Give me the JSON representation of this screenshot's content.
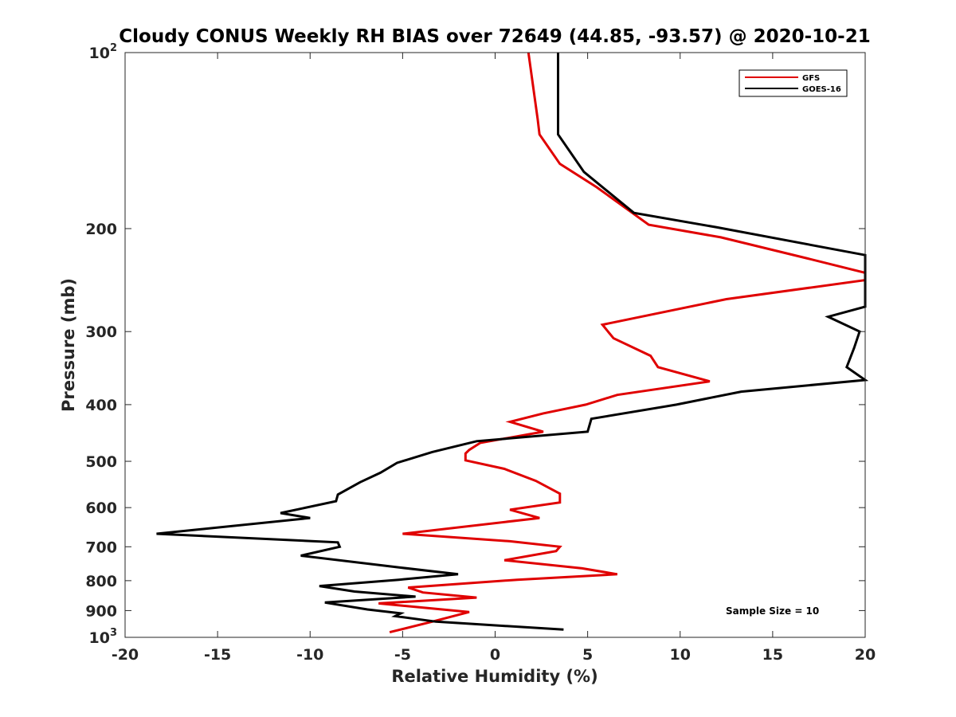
{
  "chart_data": {
    "type": "line",
    "title": "Cloudy CONUS Weekly RH BIAS over 72649 (44.85, -93.57) @ 2020-10-21",
    "xlabel": "Relative Humidity (%)",
    "ylabel": "Pressure (mb)",
    "xlim": [
      -20,
      20
    ],
    "ylim": [
      100,
      1000
    ],
    "y_scale": "log",
    "y_reversed": true,
    "x_ticks": [
      "-20",
      "-15",
      "-10",
      "-5",
      "0",
      "5",
      "10",
      "15",
      "20"
    ],
    "y_ticks": [
      {
        "value": 100,
        "base": "10",
        "exp": "2"
      },
      {
        "value": 200,
        "label": "200"
      },
      {
        "value": 300,
        "label": "300"
      },
      {
        "value": 400,
        "label": "400"
      },
      {
        "value": 500,
        "label": "500"
      },
      {
        "value": 600,
        "label": "600"
      },
      {
        "value": 700,
        "label": "700"
      },
      {
        "value": 800,
        "label": "800"
      },
      {
        "value": 900,
        "label": "900"
      },
      {
        "value": 1000,
        "base": "10",
        "exp": "3"
      }
    ],
    "grid": false,
    "legend_position": "top-right",
    "annotation": "Sample Size = 10",
    "series": [
      {
        "name": "GFS",
        "color": "#e00000",
        "points": [
          [
            1.8,
            100
          ],
          [
            2.3,
            130
          ],
          [
            2.4,
            138
          ],
          [
            3.5,
            155
          ],
          [
            5.5,
            170
          ],
          [
            8.3,
            197
          ],
          [
            12.2,
            207
          ],
          [
            16.9,
            225
          ],
          [
            20.0,
            238
          ],
          [
            20.0,
            245
          ],
          [
            12.5,
            264
          ],
          [
            5.8,
            292
          ],
          [
            6.4,
            308
          ],
          [
            8.4,
            330
          ],
          [
            8.8,
            345
          ],
          [
            11.6,
            365
          ],
          [
            6.6,
            385
          ],
          [
            4.9,
            400
          ],
          [
            2.6,
            414
          ],
          [
            0.8,
            428
          ],
          [
            2.6,
            445
          ],
          [
            -0.8,
            465
          ],
          [
            -1.4,
            478
          ],
          [
            -1.6,
            485
          ],
          [
            -1.6,
            498
          ],
          [
            0.5,
            515
          ],
          [
            2.2,
            540
          ],
          [
            3.5,
            568
          ],
          [
            3.5,
            588
          ],
          [
            0.8,
            605
          ],
          [
            2.4,
            625
          ],
          [
            -5.0,
            665
          ],
          [
            0.8,
            685
          ],
          [
            3.5,
            700
          ],
          [
            3.3,
            712
          ],
          [
            0.5,
            738
          ],
          [
            4.7,
            762
          ],
          [
            6.6,
            780
          ],
          [
            1.2,
            797
          ],
          [
            -4.7,
            822
          ],
          [
            -3.9,
            838
          ],
          [
            -1.0,
            855
          ],
          [
            -6.3,
            875
          ],
          [
            -1.4,
            905
          ],
          [
            -3.4,
            940
          ],
          [
            -5.7,
            980
          ]
        ]
      },
      {
        "name": "GOES-16",
        "color": "#000000",
        "points": [
          [
            3.4,
            100
          ],
          [
            3.4,
            138
          ],
          [
            4.8,
            160
          ],
          [
            7.5,
            188
          ],
          [
            12.0,
            199
          ],
          [
            20.0,
            222
          ],
          [
            20.0,
            272
          ],
          [
            18.0,
            283
          ],
          [
            19.7,
            300
          ],
          [
            19.4,
            320
          ],
          [
            19.0,
            345
          ],
          [
            20.0,
            363
          ],
          [
            13.3,
            380
          ],
          [
            9.8,
            400
          ],
          [
            5.2,
            423
          ],
          [
            5.0,
            445
          ],
          [
            -1.0,
            462
          ],
          [
            -3.4,
            482
          ],
          [
            -5.3,
            503
          ],
          [
            -6.2,
            523
          ],
          [
            -7.3,
            543
          ],
          [
            -8.5,
            570
          ],
          [
            -8.6,
            585
          ],
          [
            -11.6,
            613
          ],
          [
            -10.0,
            625
          ],
          [
            -18.3,
            665
          ],
          [
            -8.5,
            688
          ],
          [
            -8.4,
            700
          ],
          [
            -10.5,
            725
          ],
          [
            -5.1,
            760
          ],
          [
            -2.0,
            780
          ],
          [
            -5.2,
            797
          ],
          [
            -9.5,
            817
          ],
          [
            -7.6,
            835
          ],
          [
            -4.3,
            852
          ],
          [
            -9.2,
            872
          ],
          [
            -6.9,
            896
          ],
          [
            -5.1,
            910
          ],
          [
            -5.4,
            920
          ],
          [
            -3.2,
            940
          ],
          [
            3.7,
            970
          ]
        ]
      }
    ]
  }
}
